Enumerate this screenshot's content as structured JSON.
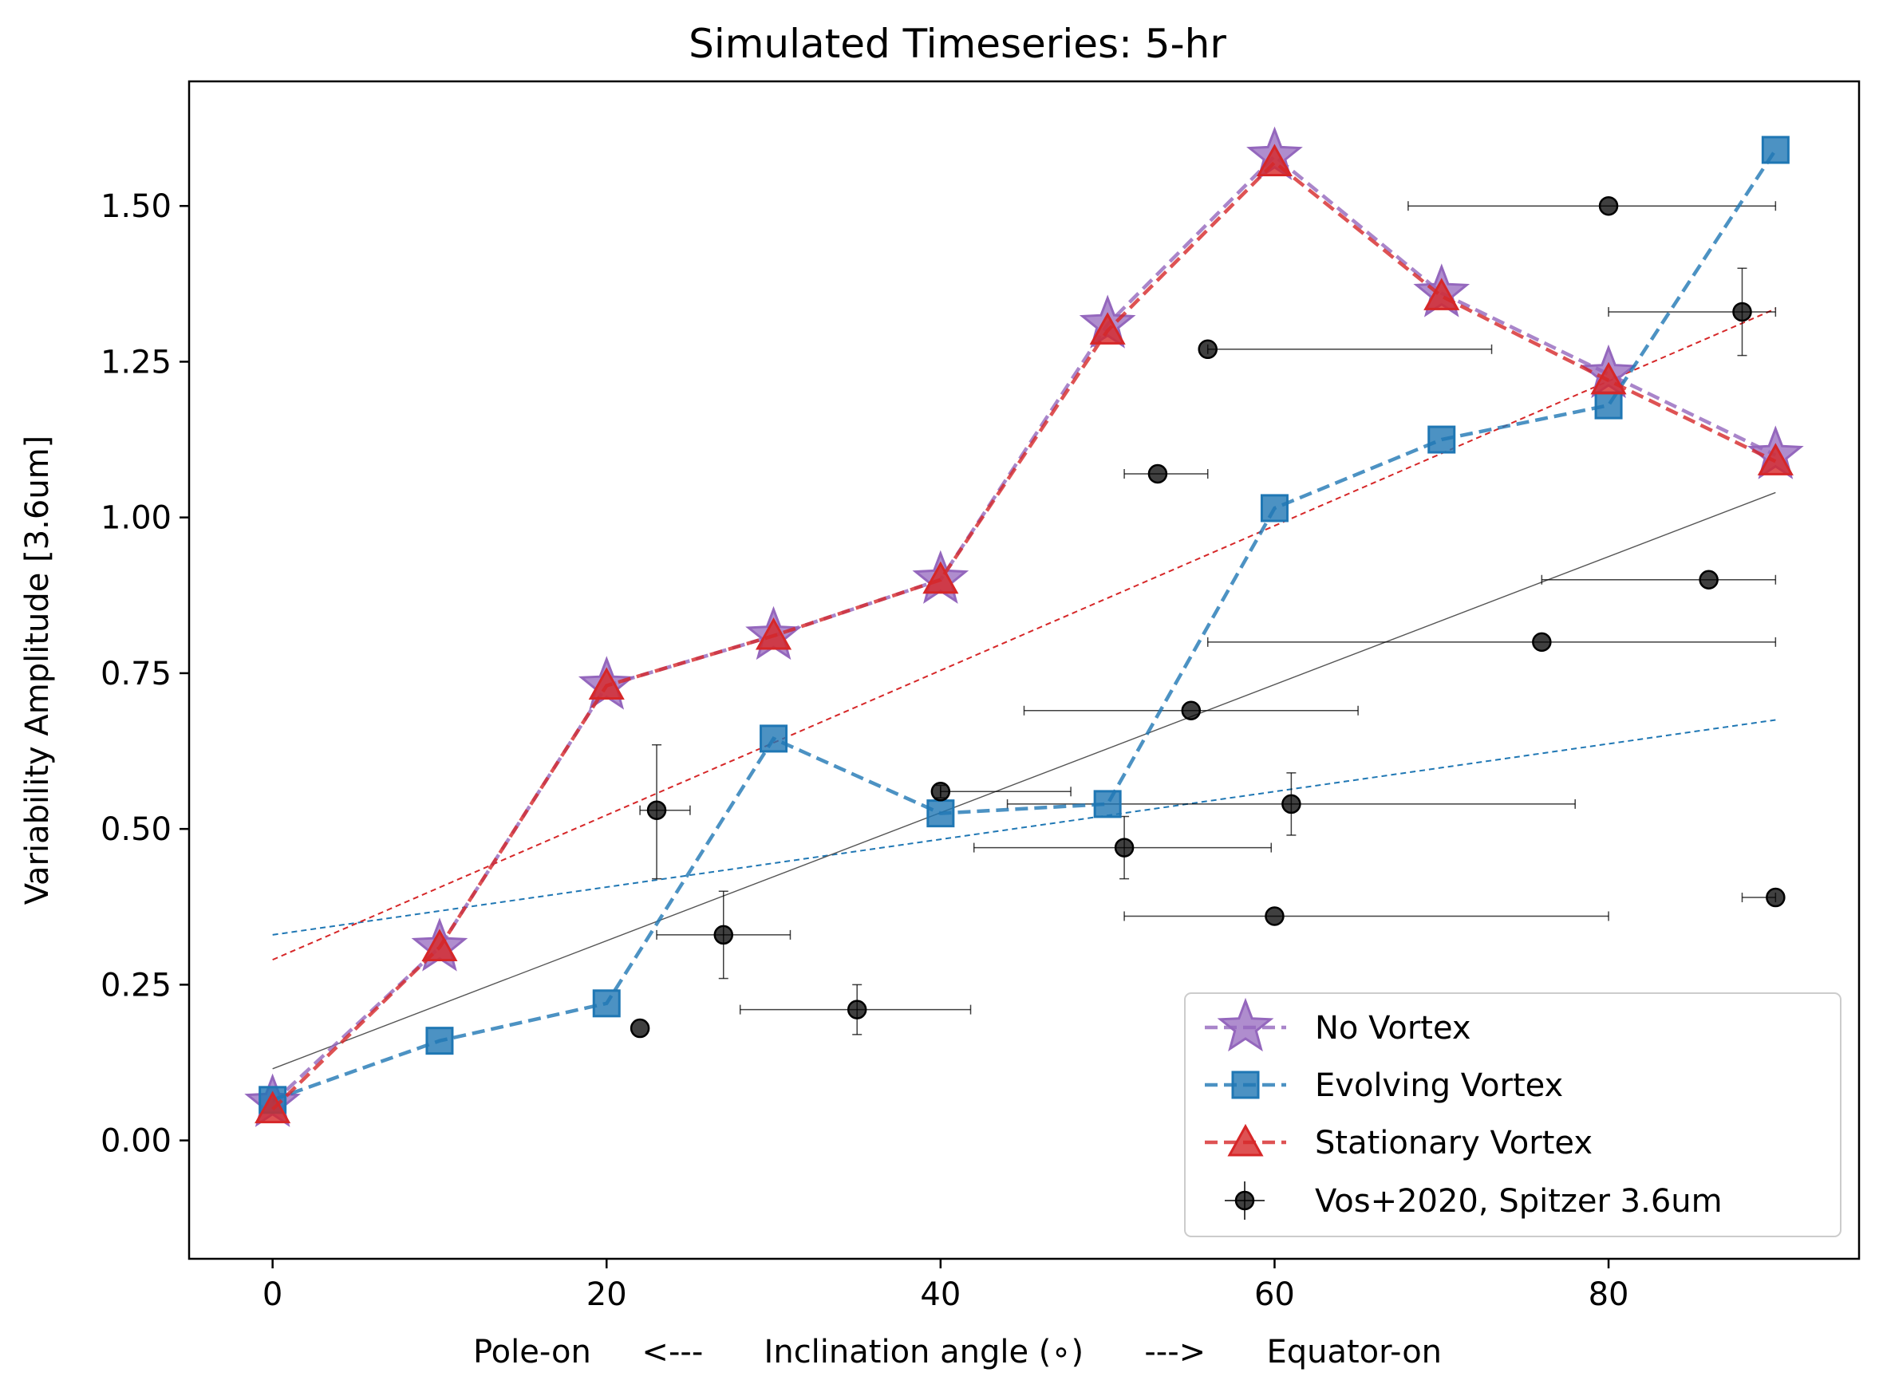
{
  "chart_data": {
    "type": "scatter",
    "title": "Simulated Timeseries: 5-hr",
    "xlabel": "Pole-on     <---      Inclination angle (∘)      --->      Equator-on",
    "ylabel": "Variability Amplitude [3.6um]",
    "xlim": [
      -5,
      95
    ],
    "ylim": [
      -0.19,
      1.7
    ],
    "x_ticks": [
      0,
      20,
      40,
      60,
      80
    ],
    "x_tick_labels": [
      "0",
      "20",
      "40",
      "60",
      "80"
    ],
    "y_ticks": [
      0.0,
      0.25,
      0.5,
      0.75,
      1.0,
      1.25,
      1.5
    ],
    "y_tick_labels": [
      "0.00",
      "0.25",
      "0.50",
      "0.75",
      "1.00",
      "1.25",
      "1.50"
    ],
    "grid": false,
    "legend_position": "lower-right",
    "series": [
      {
        "name": "No Vortex",
        "marker": "star",
        "line": "dashed",
        "color": "#9467bd",
        "x": [
          0,
          10,
          20,
          30,
          40,
          50,
          60,
          70,
          80,
          90
        ],
        "y": [
          0.06,
          0.31,
          0.73,
          0.81,
          0.9,
          1.31,
          1.58,
          1.36,
          1.23,
          1.1
        ]
      },
      {
        "name": "Evolving Vortex",
        "marker": "square",
        "line": "dashed",
        "color": "#1f77b4",
        "x": [
          0,
          10,
          20,
          30,
          40,
          50,
          60,
          70,
          80,
          90
        ],
        "y": [
          0.065,
          0.16,
          0.22,
          0.645,
          0.525,
          0.54,
          1.015,
          1.125,
          1.18,
          1.59
        ]
      },
      {
        "name": "Stationary Vortex",
        "marker": "triangle",
        "line": "dashed",
        "color": "#d62728",
        "x": [
          0,
          10,
          20,
          30,
          40,
          50,
          60,
          70,
          80,
          90
        ],
        "y": [
          0.05,
          0.31,
          0.73,
          0.81,
          0.9,
          1.3,
          1.57,
          1.355,
          1.22,
          1.09
        ]
      },
      {
        "name": "Vos+2020, Spitzer 3.6um",
        "marker": "circle",
        "line": "none",
        "color": "#000000",
        "points": [
          {
            "x": 22,
            "y": 0.18
          },
          {
            "x": 23,
            "y": 0.53,
            "xerr": [
              1,
              2
            ],
            "yerr": [
              0.11,
              0.105
            ]
          },
          {
            "x": 27,
            "y": 0.33,
            "xerr": [
              4,
              4
            ],
            "yerr": [
              0.07,
              0.07
            ]
          },
          {
            "x": 35,
            "y": 0.21,
            "xerr": [
              7,
              6.8
            ],
            "yerr": [
              0.04,
              0.04
            ]
          },
          {
            "x": 40,
            "y": 0.56,
            "xerr": [
              0,
              7.8
            ],
            "yerr": [
              0.01,
              0.01
            ]
          },
          {
            "x": 51,
            "y": 0.47,
            "xerr": [
              9,
              8.8
            ],
            "yerr": [
              0.05,
              0.05
            ]
          },
          {
            "x": 53,
            "y": 1.07,
            "xerr": [
              2,
              3
            ],
            "yerr": [
              0,
              0
            ]
          },
          {
            "x": 55,
            "y": 0.69,
            "xerr": [
              10,
              10
            ],
            "yerr": [
              0,
              0
            ]
          },
          {
            "x": 56,
            "y": 1.27,
            "xerr": [
              0,
              17
            ],
            "yerr": [
              0,
              0
            ]
          },
          {
            "x": 60,
            "y": 0.36,
            "xerr": [
              9,
              20
            ],
            "yerr": [
              0,
              0
            ]
          },
          {
            "x": 61,
            "y": 0.54,
            "xerr": [
              17,
              17
            ],
            "yerr": [
              0.05,
              0.05
            ]
          },
          {
            "x": 76,
            "y": 0.8,
            "xerr": [
              20,
              14
            ],
            "yerr": [
              0,
              0
            ]
          },
          {
            "x": 80,
            "y": 1.5,
            "xerr": [
              12,
              10
            ],
            "yerr": [
              0,
              0
            ]
          },
          {
            "x": 86,
            "y": 0.9,
            "xerr": [
              10,
              4
            ],
            "yerr": [
              0,
              0
            ]
          },
          {
            "x": 88,
            "y": 1.33,
            "xerr": [
              8,
              2
            ],
            "yerr": [
              0.07,
              0.07
            ]
          },
          {
            "x": 90,
            "y": 0.39,
            "xerr": [
              2,
              0
            ],
            "yerr": [
              0,
              0
            ]
          }
        ]
      }
    ],
    "trend_lines": [
      {
        "color": "#1f77b4",
        "style": "dotted",
        "x": [
          0,
          90
        ],
        "y": [
          0.33,
          0.675
        ]
      },
      {
        "color": "#d62728",
        "style": "dotted",
        "x": [
          0,
          90
        ],
        "y": [
          0.29,
          1.335
        ]
      },
      {
        "color": "#555555",
        "style": "solid",
        "x": [
          0,
          90
        ],
        "y": [
          0.115,
          1.04
        ]
      }
    ]
  }
}
